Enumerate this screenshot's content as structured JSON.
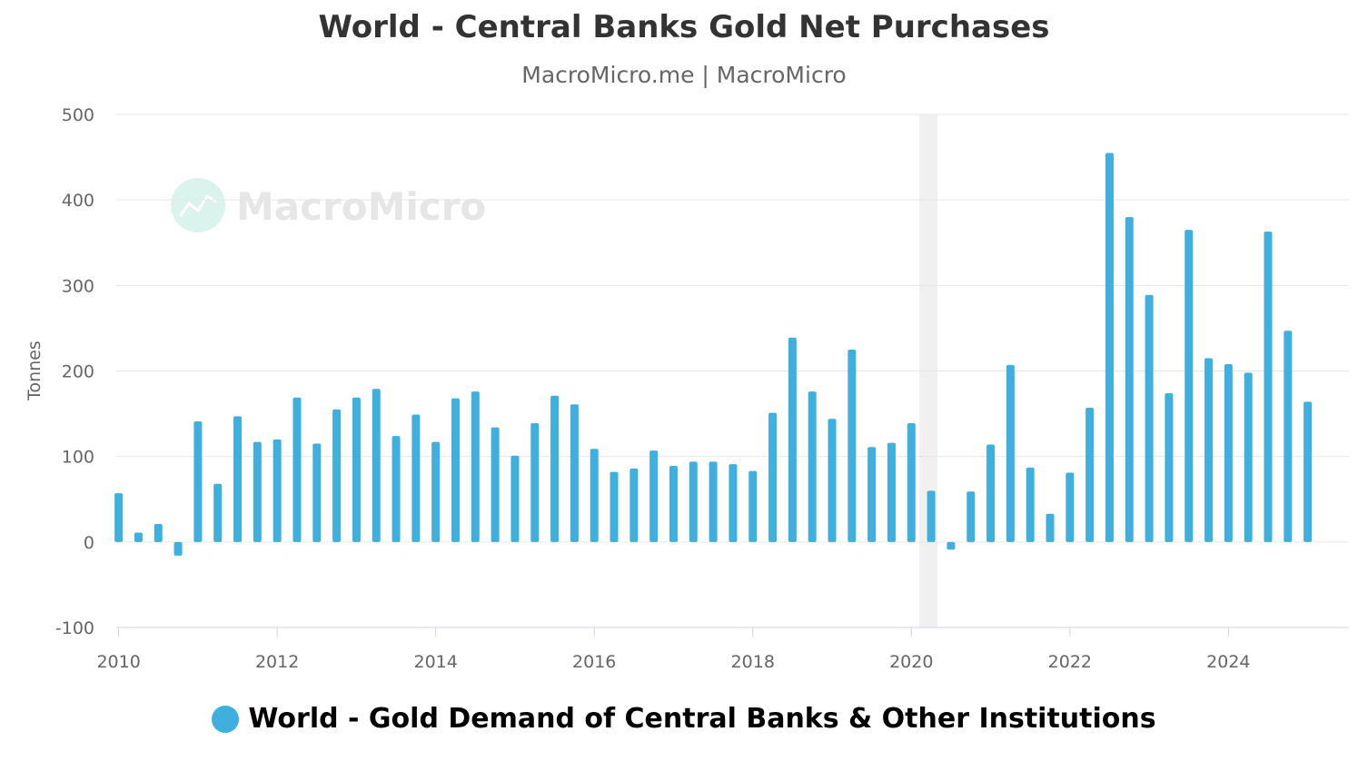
{
  "colors": {
    "bar": "#3fb0de",
    "grid": "#e6e6e6",
    "axis_line": "#ccd6eb",
    "recession_band": "#f0f0f0"
  },
  "watermark": {
    "text": "MacroMicro",
    "icon": "macromicro-logo-icon"
  },
  "chart_data": {
    "type": "bar",
    "title": "World - Central Banks Gold Net Purchases",
    "subtitle": "MacroMicro.me | MacroMicro",
    "ylabel": "Tonnes",
    "ylim": [
      -100,
      500
    ],
    "yticks": [
      "-100",
      "0",
      "100",
      "200",
      "300",
      "400",
      "500"
    ],
    "xlim": [
      2009.97,
      2025.52
    ],
    "xticks": [
      "2010",
      "2012",
      "2014",
      "2016",
      "2018",
      "2020",
      "2022",
      "2024"
    ],
    "grid": true,
    "legend_position": "bottom",
    "shaded_periods": [
      {
        "start": 2020.1,
        "end": 2020.33
      }
    ],
    "series": [
      {
        "name": "World - Gold Demand of Central Banks & Other Institutions",
        "x": [
          "2010-Q1",
          "2010-Q2",
          "2010-Q3",
          "2010-Q4",
          "2011-Q1",
          "2011-Q2",
          "2011-Q3",
          "2011-Q4",
          "2012-Q1",
          "2012-Q2",
          "2012-Q3",
          "2012-Q4",
          "2013-Q1",
          "2013-Q2",
          "2013-Q3",
          "2013-Q4",
          "2014-Q1",
          "2014-Q2",
          "2014-Q3",
          "2014-Q4",
          "2015-Q1",
          "2015-Q2",
          "2015-Q3",
          "2015-Q4",
          "2016-Q1",
          "2016-Q2",
          "2016-Q3",
          "2016-Q4",
          "2017-Q1",
          "2017-Q2",
          "2017-Q3",
          "2017-Q4",
          "2018-Q1",
          "2018-Q2",
          "2018-Q3",
          "2018-Q4",
          "2019-Q1",
          "2019-Q2",
          "2019-Q3",
          "2019-Q4",
          "2020-Q1",
          "2020-Q2",
          "2020-Q3",
          "2020-Q4",
          "2021-Q1",
          "2021-Q2",
          "2021-Q3",
          "2021-Q4",
          "2022-Q1",
          "2022-Q2",
          "2022-Q3",
          "2022-Q4",
          "2023-Q1",
          "2023-Q2",
          "2023-Q3",
          "2023-Q4",
          "2024-Q1",
          "2024-Q2",
          "2024-Q3",
          "2024-Q4",
          "2025-Q1"
        ],
        "values": [
          57,
          11,
          21,
          -16,
          141,
          68,
          147,
          117,
          120,
          169,
          115,
          155,
          169,
          179,
          124,
          149,
          117,
          168,
          176,
          134,
          101,
          139,
          171,
          161,
          109,
          82,
          86,
          107,
          89,
          94,
          94,
          91,
          83,
          151,
          239,
          176,
          144,
          225,
          111,
          116,
          139,
          60,
          -9,
          59,
          114,
          207,
          87,
          33,
          81,
          157,
          455,
          380,
          289,
          174,
          365,
          215,
          208,
          198,
          363,
          247,
          164
        ]
      }
    ]
  }
}
